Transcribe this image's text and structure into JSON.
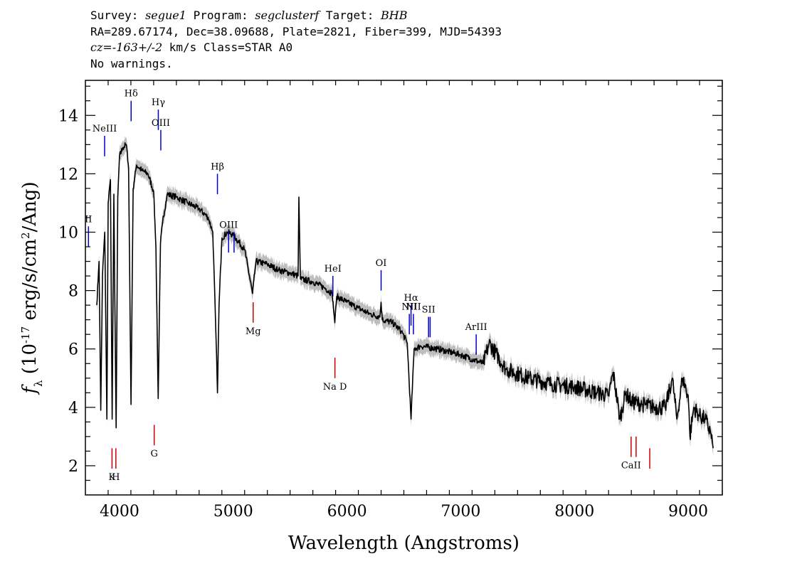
{
  "header": {
    "survey_label": "Survey:",
    "survey_value": "segue1",
    "program_label": "Program:",
    "program_value": "segclusterf",
    "target_label": "Target:",
    "target_value": "BHB",
    "coords_line": "RA=289.67174, Dec=38.09688, Plate=2821, Fiber=399, MJD=54393",
    "cz_value": "cz=-163+/-2",
    "cz_rest": " km/s Class=STAR A0",
    "warnings": "No warnings."
  },
  "chart_data": {
    "type": "line",
    "xlabel": "Wavelength (Angstroms)",
    "ylabel": "f_λ (10^-17 erg/s/cm^2/Ang)",
    "xlim": [
      3700,
      9300
    ],
    "ylim": [
      1,
      15.2
    ],
    "xticks": [
      4000,
      5000,
      6000,
      7000,
      8000,
      9000
    ],
    "yticks": [
      2,
      4,
      6,
      8,
      10,
      12,
      14
    ],
    "grid": false,
    "colors": {
      "spectrum": "#000000",
      "error_band": "#bdbdbd",
      "emission_lines": "#0000cc",
      "absorption_lines": "#cc0000"
    },
    "series": [
      {
        "x": [
          3800,
          3820,
          3835,
          3850,
          3870,
          3889,
          3900,
          3920,
          3935,
          3950,
          3970,
          3985,
          4000,
          4030,
          4060,
          4080,
          4101,
          4120,
          4150,
          4200,
          4250,
          4300,
          4320,
          4340,
          4360,
          4380,
          4420,
          4500,
          4600,
          4700,
          4780,
          4820,
          4850,
          4861,
          4875,
          4900,
          4950,
          5000,
          5100,
          5170,
          5200,
          5300,
          5400,
          5500,
          5570,
          5577,
          5590,
          5700,
          5800,
          5870,
          5893,
          5910,
          6000,
          6100,
          6200,
          6290,
          6300,
          6310,
          6400,
          6480,
          6530,
          6563,
          6590,
          6650,
          6800,
          7000,
          7200,
          7250,
          7400,
          7600,
          7800,
          8000,
          8200,
          8300,
          8340,
          8400,
          8450,
          8500,
          8600,
          8700,
          8800,
          8860,
          8900,
          8950,
          9000,
          9015,
          9050,
          9100,
          9150,
          9200,
          9220
        ],
        "y": [
          7.5,
          9.0,
          3.9,
          8.5,
          10.0,
          3.6,
          11.0,
          11.8,
          3.6,
          11.3,
          3.3,
          11.2,
          12.6,
          12.9,
          13.0,
          12.2,
          4.1,
          11.5,
          12.3,
          12.1,
          12.0,
          11.4,
          9.5,
          4.3,
          9.6,
          10.4,
          11.3,
          11.2,
          11.0,
          10.8,
          10.5,
          10.0,
          6.2,
          4.5,
          7.5,
          9.8,
          10.0,
          9.9,
          9.4,
          7.9,
          9.0,
          8.9,
          8.7,
          8.6,
          8.5,
          11.2,
          8.4,
          8.3,
          8.1,
          7.9,
          6.9,
          7.8,
          7.6,
          7.4,
          7.2,
          7.1,
          7.6,
          7.0,
          6.9,
          6.6,
          6.2,
          3.6,
          6.0,
          6.1,
          6.0,
          5.8,
          5.5,
          6.2,
          5.3,
          5.0,
          4.8,
          4.7,
          4.5,
          4.4,
          5.2,
          3.6,
          4.5,
          4.2,
          4.1,
          4.0,
          4.0,
          5.0,
          3.6,
          5.0,
          4.4,
          3.0,
          4.0,
          3.7,
          3.6,
          3.1,
          2.6
        ]
      }
    ],
    "line_markers": [
      {
        "label": "NeIII",
        "wavelength": 3869,
        "y_from": 12.6,
        "y_to": 13.3,
        "kind": "emission"
      },
      {
        "label": "Hδ",
        "wavelength": 4102,
        "y_from": 13.8,
        "y_to": 14.5,
        "kind": "emission"
      },
      {
        "label": "Hγ",
        "wavelength": 4341,
        "y_from": 13.5,
        "y_to": 14.2,
        "kind": "emission"
      },
      {
        "label": "OIII",
        "wavelength": 4363,
        "y_from": 12.8,
        "y_to": 13.5,
        "kind": "emission"
      },
      {
        "label": "Hβ",
        "wavelength": 4861,
        "y_from": 11.3,
        "y_to": 12.0,
        "kind": "emission"
      },
      {
        "label": "OIII",
        "wavelength": 4959,
        "y_from": 9.3,
        "y_to": 10.0,
        "kind": "emission"
      },
      {
        "label": "",
        "wavelength": 5007,
        "y_from": 9.3,
        "y_to": 10.0,
        "kind": "emission"
      },
      {
        "label": "HeI",
        "wavelength": 5876,
        "y_from": 7.8,
        "y_to": 8.5,
        "kind": "emission"
      },
      {
        "label": "OI",
        "wavelength": 6300,
        "y_from": 8.0,
        "y_to": 8.7,
        "kind": "emission"
      },
      {
        "label": "NII",
        "wavelength": 6548,
        "y_from": 6.5,
        "y_to": 7.2,
        "kind": "emission"
      },
      {
        "label": "Hα",
        "wavelength": 6563,
        "y_from": 6.8,
        "y_to": 7.5,
        "kind": "emission"
      },
      {
        "label": "NII",
        "wavelength": 6584,
        "y_from": 6.5,
        "y_to": 7.2,
        "kind": "emission"
      },
      {
        "label": "SII",
        "wavelength": 6717,
        "y_from": 6.4,
        "y_to": 7.1,
        "kind": "emission"
      },
      {
        "label": "",
        "wavelength": 6731,
        "y_from": 6.4,
        "y_to": 7.1,
        "kind": "emission"
      },
      {
        "label": "ArIII",
        "wavelength": 7136,
        "y_from": 5.8,
        "y_to": 6.5,
        "kind": "emission"
      },
      {
        "label": "II",
        "wavelength": 3727,
        "y_from": 9.5,
        "y_to": 10.2,
        "kind": "emission"
      },
      {
        "label": "K",
        "wavelength": 3934,
        "y_from": 1.9,
        "y_to": 2.6,
        "kind": "absorption"
      },
      {
        "label": "H",
        "wavelength": 3968,
        "y_from": 1.9,
        "y_to": 2.6,
        "kind": "absorption"
      },
      {
        "label": "G",
        "wavelength": 4305,
        "y_from": 2.7,
        "y_to": 3.4,
        "kind": "absorption"
      },
      {
        "label": "Mg",
        "wavelength": 5175,
        "y_from": 6.9,
        "y_to": 7.6,
        "kind": "absorption"
      },
      {
        "label": "Na D",
        "wavelength": 5894,
        "y_from": 5.0,
        "y_to": 5.7,
        "kind": "absorption"
      },
      {
        "label": "CaII",
        "wavelength": 8498,
        "y_from": 2.3,
        "y_to": 3.0,
        "kind": "absorption"
      },
      {
        "label": "",
        "wavelength": 8542,
        "y_from": 2.3,
        "y_to": 3.0,
        "kind": "absorption"
      },
      {
        "label": "",
        "wavelength": 8662,
        "y_from": 1.9,
        "y_to": 2.6,
        "kind": "absorption"
      }
    ]
  }
}
